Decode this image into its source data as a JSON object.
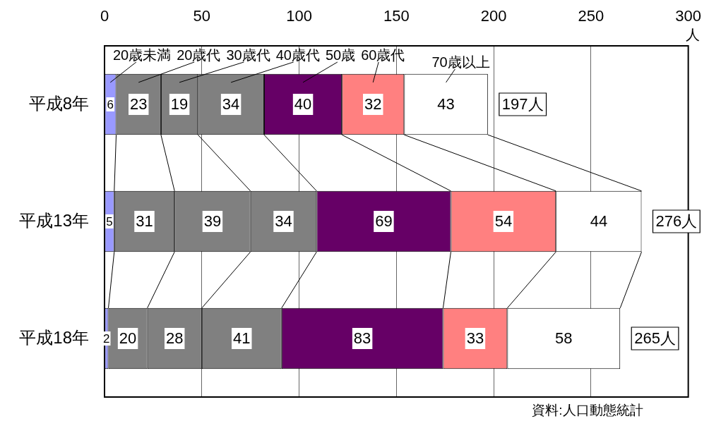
{
  "chart_data": {
    "type": "bar",
    "orientation": "horizontal",
    "stacked": true,
    "xlabel": "人",
    "categories": [
      "平成8年",
      "平成13年",
      "平成18年"
    ],
    "series": [
      {
        "name": "20歳未満",
        "color": "#9999ff",
        "values": [
          6,
          5,
          2
        ]
      },
      {
        "name": "20歳代",
        "color": "#808080",
        "values": [
          23,
          31,
          20
        ]
      },
      {
        "name": "30歳代",
        "color": "#808080",
        "values": [
          19,
          39,
          28
        ]
      },
      {
        "name": "40歳代",
        "color": "#808080",
        "values": [
          34,
          34,
          41
        ]
      },
      {
        "name": "50歳",
        "color": "#660066",
        "values": [
          40,
          69,
          83
        ]
      },
      {
        "name": "60歳代",
        "color": "#ff8080",
        "values": [
          32,
          54,
          33
        ]
      },
      {
        "name": "70歳以上",
        "color": "#ffffff",
        "values": [
          43,
          44,
          58
        ]
      }
    ],
    "xlim": [
      0,
      300
    ],
    "xticks": [
      0,
      50,
      100,
      150,
      200,
      250,
      300
    ],
    "grid": "x",
    "legend": false,
    "data_labels": true,
    "totals": [
      "197人",
      "276人",
      "265人"
    ],
    "annotations": [
      "資料:人口動態統計"
    ]
  }
}
